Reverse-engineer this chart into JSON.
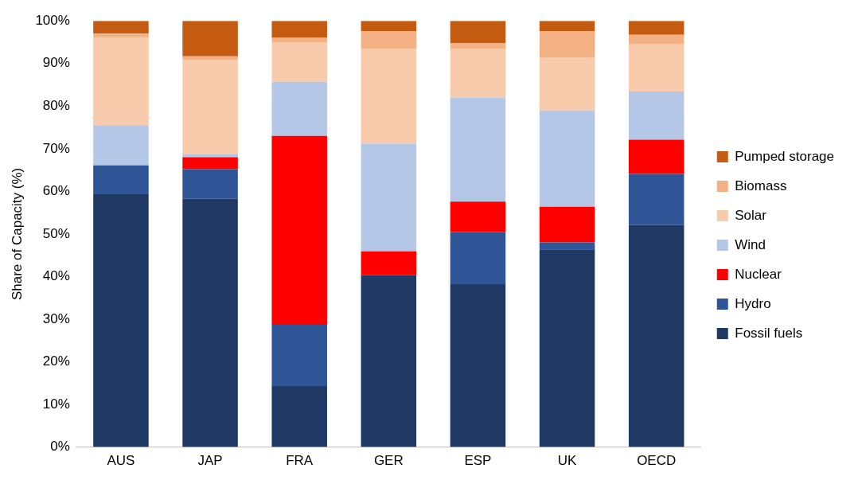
{
  "chart_data": {
    "type": "bar",
    "stacked": true,
    "ylabel": "Share of Capacity (%)",
    "categories": [
      "AUS",
      "JAP",
      "FRA",
      "GER",
      "ESP",
      "UK",
      "OECD"
    ],
    "series": [
      {
        "name": "Fossil fuels",
        "color": "#203864",
        "values": [
          59.3,
          58.3,
          14.3,
          40.3,
          38.2,
          46.4,
          52.1
        ]
      },
      {
        "name": "Hydro",
        "color": "#2f5597",
        "values": [
          6.8,
          6.9,
          14.4,
          0,
          12.3,
          1.6,
          12
        ]
      },
      {
        "name": "Nuclear",
        "color": "#ff0000",
        "values": [
          0,
          2.8,
          44.3,
          5.6,
          7.1,
          8.4,
          8
        ]
      },
      {
        "name": "Wind",
        "color": "#b4c7e7",
        "values": [
          9.4,
          0.8,
          12.7,
          25.3,
          24.4,
          22.6,
          11.3
        ]
      },
      {
        "name": "Solar",
        "color": "#f8cbad",
        "values": [
          20.5,
          22,
          9.3,
          22.3,
          11.5,
          12.3,
          11.1
        ]
      },
      {
        "name": "Biomass",
        "color": "#f4b183",
        "values": [
          1,
          0.9,
          1,
          4.1,
          1.3,
          6.3,
          2.2
        ]
      },
      {
        "name": "Pumped storage",
        "color": "#c55a11",
        "values": [
          3,
          8.3,
          4,
          2.4,
          5.2,
          2.4,
          3.3
        ]
      }
    ],
    "ylim": [
      0,
      100
    ],
    "yticks": [
      {
        "value": 0,
        "label": "0%"
      },
      {
        "value": 10,
        "label": "10%"
      },
      {
        "value": 20,
        "label": "20%"
      },
      {
        "value": 30,
        "label": "30%"
      },
      {
        "value": 40,
        "label": "40%"
      },
      {
        "value": 50,
        "label": "50%"
      },
      {
        "value": 60,
        "label": "60%"
      },
      {
        "value": 70,
        "label": "70%"
      },
      {
        "value": 80,
        "label": "80%"
      },
      {
        "value": 90,
        "label": "90%"
      },
      {
        "value": 100,
        "label": "100%"
      }
    ],
    "grid": false,
    "legend": "right"
  }
}
